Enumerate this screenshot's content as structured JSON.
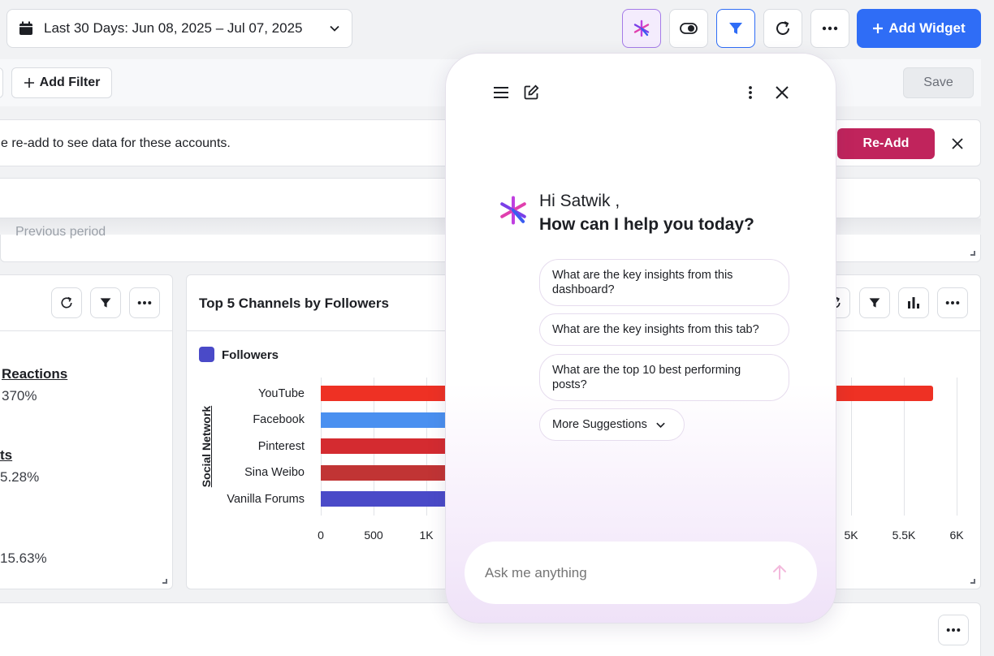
{
  "header": {
    "date_range": "Last 30 Days: Jun 08, 2025 – Jul 07, 2025",
    "add_widget": "Add Widget"
  },
  "filterbar": {
    "add_filter": "Add Filter",
    "save": "Save"
  },
  "notice": {
    "text": "e re-add to see data for these accounts.",
    "re_add": "Re-Add"
  },
  "peek_text": "Previous period",
  "left_card": {
    "metrics": [
      {
        "label": "Reactions",
        "value": "370%"
      },
      {
        "label": "ts",
        "value": "5.28%"
      },
      {
        "label": "",
        "value": "15.63%"
      }
    ]
  },
  "chart_card": {
    "title": "Top 5 Channels by Followers"
  },
  "chart_data": {
    "type": "bar",
    "orientation": "horizontal",
    "title": "Top 5 Channels by Followers",
    "ylabel": "Social Network",
    "legend": [
      "Followers"
    ],
    "categories": [
      "YouTube",
      "Facebook",
      "Pinterest",
      "Sina Weibo",
      "Vanilla Forums"
    ],
    "series": [
      {
        "name": "Followers",
        "values": [
          5800,
          null,
          null,
          null,
          null
        ]
      }
    ],
    "bar_colors": [
      "#ee3124",
      "#4a90f0",
      "#d42b30",
      "#c13434",
      "#4a4ac8"
    ],
    "legend_color": "#4a4ac8",
    "xticks": [
      "0",
      "500",
      "1K",
      "5K",
      "5.5K",
      "6K"
    ],
    "xlim": [
      0,
      6000
    ],
    "grid": true
  },
  "assistant": {
    "greeting": "Hi Satwik ,",
    "question": "How can I help you today?",
    "suggestions": [
      "What are the key insights from this dashboard?",
      "What are the key insights from this tab?",
      "What are the top 10 best performing posts?"
    ],
    "more": "More Suggestions",
    "input_placeholder": "Ask me anything"
  },
  "colors": {
    "primary": "#2f6df6",
    "re_add": "#c0245c",
    "accent": "#7b3fe4"
  }
}
